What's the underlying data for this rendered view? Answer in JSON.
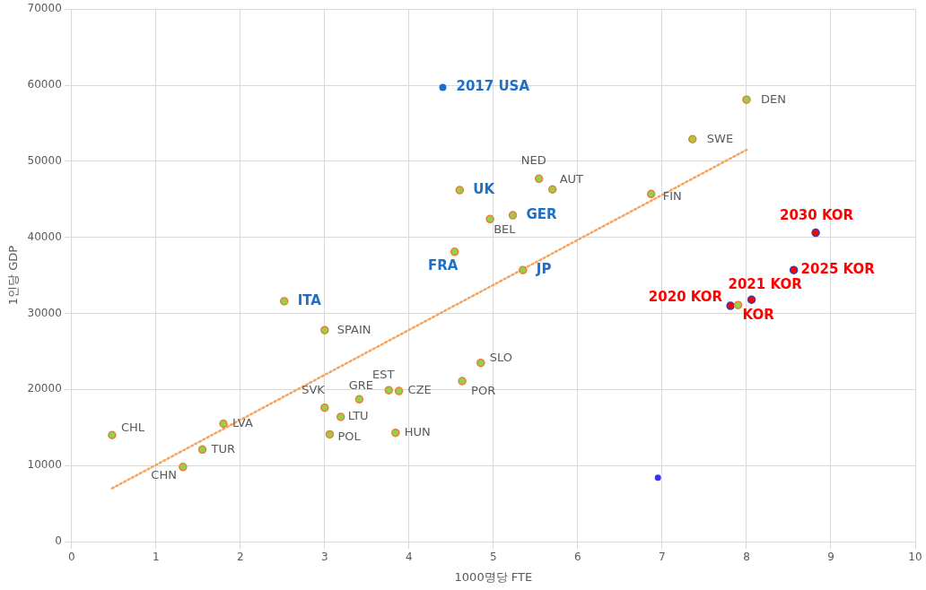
{
  "chart_data": {
    "type": "scatter",
    "xlabel": "1000명당 FTE",
    "ylabel": "1인당 GDP",
    "xlim": [
      0,
      10
    ],
    "xticks": [
      0,
      1,
      2,
      3,
      4,
      5,
      6,
      7,
      8,
      9,
      10
    ],
    "ylim": [
      0,
      70000
    ],
    "yticks": [
      0,
      10000,
      20000,
      30000,
      40000,
      50000,
      60000,
      70000
    ],
    "grid": true,
    "legend": false,
    "marker": "circle",
    "series": [
      {
        "color": "#92d050",
        "x": [
          0.48,
          1.32,
          1.55,
          1.8,
          3.0,
          3.0,
          3.06,
          3.19,
          3.41,
          3.76,
          3.88,
          3.84,
          4.63,
          4.85,
          4.96,
          5.54,
          5.7,
          6.87,
          7.36,
          8.0
        ],
        "values": [
          14000,
          9800,
          12100,
          15500,
          27800,
          17600,
          14100,
          16400,
          18700,
          19900,
          19800,
          14300,
          21100,
          23500,
          42400,
          47700,
          46300,
          45700,
          52900,
          58100
        ]
      },
      {
        "color": "#92d050",
        "x": [
          2.52,
          4.54,
          4.6,
          5.23,
          5.35
        ],
        "values": [
          31600,
          38100,
          46200,
          42900,
          35700
        ]
      },
      {
        "color": "#1f6fc6",
        "x": [
          4.4
        ],
        "values": [
          59700
        ]
      },
      {
        "color": "#92d050",
        "x": [
          7.9
        ],
        "values": [
          31100
        ]
      },
      {
        "color": "#ff0000",
        "x": [
          7.81,
          8.06,
          8.56,
          8.82
        ],
        "values": [
          31000,
          31800,
          35700,
          40600
        ]
      },
      {
        "color": "#3333ff",
        "x": [
          6.95
        ],
        "values": [
          8400
        ]
      },
      {
        "type": "line",
        "color": "#f4a460",
        "line_style": "dotted",
        "marker": "none",
        "x": [
          0.48,
          8.0
        ],
        "values": [
          7000,
          51500
        ]
      }
    ],
    "annotations": [
      {
        "text": "CHL",
        "x": 0.48,
        "y": 14000
      },
      {
        "text": "CHN",
        "x": 1.32,
        "y": 9800
      },
      {
        "text": "TUR",
        "x": 1.55,
        "y": 12100
      },
      {
        "text": "LVA",
        "x": 1.8,
        "y": 15500
      },
      {
        "text": "SPAIN",
        "x": 3.0,
        "y": 27800
      },
      {
        "text": "SVK",
        "x": 3.0,
        "y": 17600
      },
      {
        "text": "POL",
        "x": 3.06,
        "y": 14100
      },
      {
        "text": "LTU",
        "x": 3.19,
        "y": 16400
      },
      {
        "text": "GRE",
        "x": 3.41,
        "y": 18700
      },
      {
        "text": "EST",
        "x": 3.76,
        "y": 19900
      },
      {
        "text": "CZE",
        "x": 3.88,
        "y": 19800
      },
      {
        "text": "HUN",
        "x": 3.84,
        "y": 14300
      },
      {
        "text": "POR",
        "x": 4.63,
        "y": 21100
      },
      {
        "text": "SLO",
        "x": 4.85,
        "y": 23500
      },
      {
        "text": "BEL",
        "x": 4.96,
        "y": 42400
      },
      {
        "text": "NED",
        "x": 5.54,
        "y": 47700
      },
      {
        "text": "AUT",
        "x": 5.7,
        "y": 46300
      },
      {
        "text": "FIN",
        "x": 6.87,
        "y": 45700
      },
      {
        "text": "SWE",
        "x": 7.36,
        "y": 52900
      },
      {
        "text": "DEN",
        "x": 8.0,
        "y": 58100
      },
      {
        "text": "ITA",
        "x": 2.52,
        "y": 31600
      },
      {
        "text": "FRA",
        "x": 4.54,
        "y": 38100
      },
      {
        "text": "UK",
        "x": 4.6,
        "y": 46200
      },
      {
        "text": "GER",
        "x": 5.23,
        "y": 42900
      },
      {
        "text": "JP",
        "x": 5.35,
        "y": 35700
      },
      {
        "text": "2017 USA",
        "x": 4.4,
        "y": 59700
      },
      {
        "text": "KOR",
        "x": 7.9,
        "y": 31100
      },
      {
        "text": "2020 KOR",
        "x": 7.81,
        "y": 31000
      },
      {
        "text": "2021 KOR",
        "x": 8.06,
        "y": 31800
      },
      {
        "text": "2025 KOR",
        "x": 8.56,
        "y": 35700
      },
      {
        "text": "2030 KOR",
        "x": 8.82,
        "y": 40600
      }
    ]
  }
}
